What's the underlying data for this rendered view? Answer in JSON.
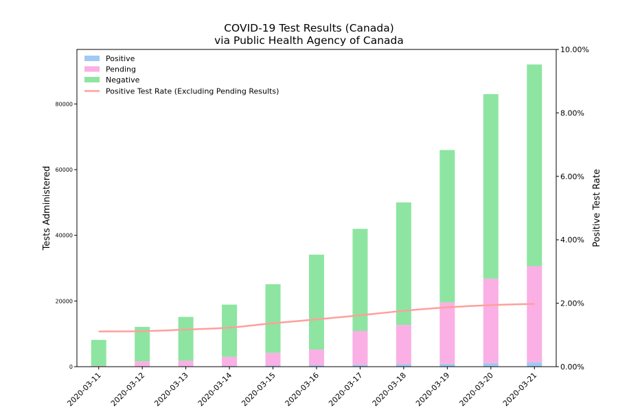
{
  "chart_data": {
    "type": "bar",
    "title": "COVID-19 Test Results (Canada)",
    "subtitle": "via Public Health Agency of Canada",
    "ylabel": "Tests Administered",
    "y2label": "Positive Test Rate",
    "categories": [
      "2020-03-11",
      "2020-03-12",
      "2020-03-13",
      "2020-03-14",
      "2020-03-15",
      "2020-03-16",
      "2020-03-17",
      "2020-03-18",
      "2020-03-19",
      "2020-03-20",
      "2020-03-21"
    ],
    "stacked": true,
    "series": [
      {
        "name": "Positive",
        "color": "#a1c9f4",
        "values": [
          93,
          117,
          157,
          198,
          313,
          415,
          569,
          727,
          873,
          1087,
          1331
        ]
      },
      {
        "name": "Pending",
        "color": "#fab0e4",
        "values": [
          150,
          1500,
          1700,
          2800,
          3900,
          4800,
          10300,
          12000,
          18700,
          25700,
          29300
        ]
      },
      {
        "name": "Negative",
        "color": "#8de5a1",
        "values": [
          7900,
          10500,
          13300,
          15900,
          20900,
          28900,
          31100,
          37300,
          46400,
          56200,
          61400
        ]
      }
    ],
    "line_series": {
      "name": "Positive Test Rate (Excluding Pending Results)",
      "color": "#ff9f9b",
      "axis": "right",
      "values": [
        0.0111,
        0.0112,
        0.0117,
        0.0123,
        0.0137,
        0.0149,
        0.0162,
        0.0176,
        0.0187,
        0.0194,
        0.0198
      ]
    },
    "ylim": [
      0,
      96600
    ],
    "yticks": [
      0,
      20000,
      40000,
      60000,
      80000
    ],
    "y2lim": [
      0,
      0.1
    ],
    "y2ticks": [
      "0.00%",
      "2.00%",
      "4.00%",
      "6.00%",
      "8.00%",
      "10.00%"
    ],
    "legend": "top-left",
    "grid": false
  }
}
